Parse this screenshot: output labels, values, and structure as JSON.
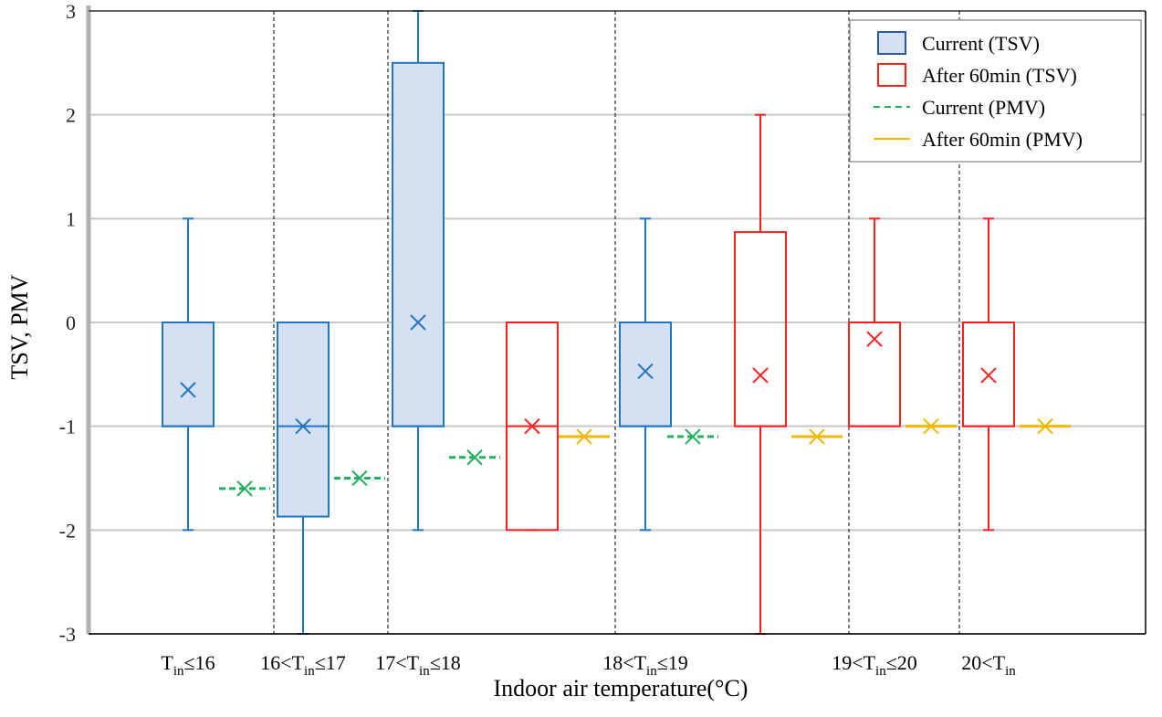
{
  "chart_data": {
    "type": "box",
    "xlabel": "Indoor air temperature(°C)",
    "ylabel": "TSV, PMV",
    "ylim": [
      -3,
      3
    ],
    "yticks": [
      3,
      2,
      1,
      0,
      -1,
      -2,
      -3
    ],
    "grid": "horizontal",
    "legend_position": "top-right",
    "categories": [
      {
        "id": "c1",
        "label": [
          {
            "t": "T"
          },
          {
            "t": "in",
            "sub": true
          },
          {
            "t": "≤16"
          }
        ]
      },
      {
        "id": "c2",
        "label": [
          {
            "t": "16<T"
          },
          {
            "t": "in",
            "sub": true
          },
          {
            "t": "≤17"
          }
        ]
      },
      {
        "id": "c3",
        "label": [
          {
            "t": "17<T"
          },
          {
            "t": "in",
            "sub": true
          },
          {
            "t": "≤18"
          }
        ]
      },
      {
        "id": "c4",
        "label": [
          {
            "t": "18<T"
          },
          {
            "t": "in",
            "sub": true
          },
          {
            "t": "≤19"
          }
        ]
      },
      {
        "id": "c5",
        "label": [
          {
            "t": "19<T"
          },
          {
            "t": "in",
            "sub": true
          },
          {
            "t": "≤20"
          }
        ]
      },
      {
        "id": "c6",
        "label": [
          {
            "t": "20<T"
          },
          {
            "t": "in",
            "sub": true
          }
        ]
      }
    ],
    "legend": [
      {
        "label": "Current (TSV)",
        "kind": "box-filled",
        "color": "#2c5aa0",
        "fill": "#d5e0f2"
      },
      {
        "label": "After 60min (TSV)",
        "kind": "box-empty",
        "color": "#ff2020"
      },
      {
        "label": "Current (PMV)",
        "kind": "dashed-line",
        "color": "#22b060"
      },
      {
        "label": "After 60min (PMV)",
        "kind": "solid-line",
        "color": "#f2b600"
      }
    ],
    "series": [
      {
        "name": "Current (TSV)",
        "type": "box",
        "color": "#1f77c4",
        "fill": "#d5e0f2",
        "boxes": [
          {
            "category": "c1",
            "min": -2,
            "q1": -1,
            "median": -1,
            "q3": 0,
            "max": 1,
            "mean": -0.65
          },
          {
            "category": "c2",
            "min": -3,
            "q1": -1.87,
            "median": -1,
            "q3": 0,
            "max": 0,
            "mean": -1
          },
          {
            "category": "c3",
            "min": -2,
            "q1": -1,
            "median": -1,
            "q3": 2.5,
            "max": 3,
            "mean": 0
          },
          {
            "category": "c4",
            "min": -2,
            "q1": -1,
            "median": -1,
            "q3": 0,
            "max": 1,
            "mean": -0.47
          }
        ]
      },
      {
        "name": "After 60min (TSV)",
        "type": "box",
        "color": "#ff2020",
        "boxes": [
          {
            "category": "c3",
            "min": -2,
            "q1": -2,
            "median": -1,
            "q3": 0,
            "max": 0,
            "mean": -1
          },
          {
            "category": "c4",
            "min": -3,
            "q1": -1,
            "median": -1,
            "q3": 0.87,
            "max": 2,
            "mean": -0.51
          },
          {
            "category": "c5",
            "min": -1,
            "q1": -1,
            "median": -1,
            "q3": 0,
            "max": 1,
            "mean": -0.16
          },
          {
            "category": "c6",
            "min": -2,
            "q1": -1,
            "median": -1,
            "q3": 0,
            "max": 1,
            "mean": -0.51
          }
        ]
      },
      {
        "name": "Current (PMV)",
        "type": "mean-line",
        "color": "#22b060",
        "dashed": true,
        "points": [
          {
            "category": "c1",
            "value": -1.6
          },
          {
            "category": "c2",
            "value": -1.5
          },
          {
            "category": "c3",
            "value": -1.3
          },
          {
            "category": "c4",
            "value": -1.1
          }
        ]
      },
      {
        "name": "After 60min (PMV)",
        "type": "mean-line",
        "color": "#f2b600",
        "dashed": false,
        "points": [
          {
            "category": "c3",
            "value": -1.1
          },
          {
            "category": "c4",
            "value": -1.1
          },
          {
            "category": "c5",
            "value": -1.0
          },
          {
            "category": "c6",
            "value": -1.0
          }
        ]
      }
    ]
  }
}
